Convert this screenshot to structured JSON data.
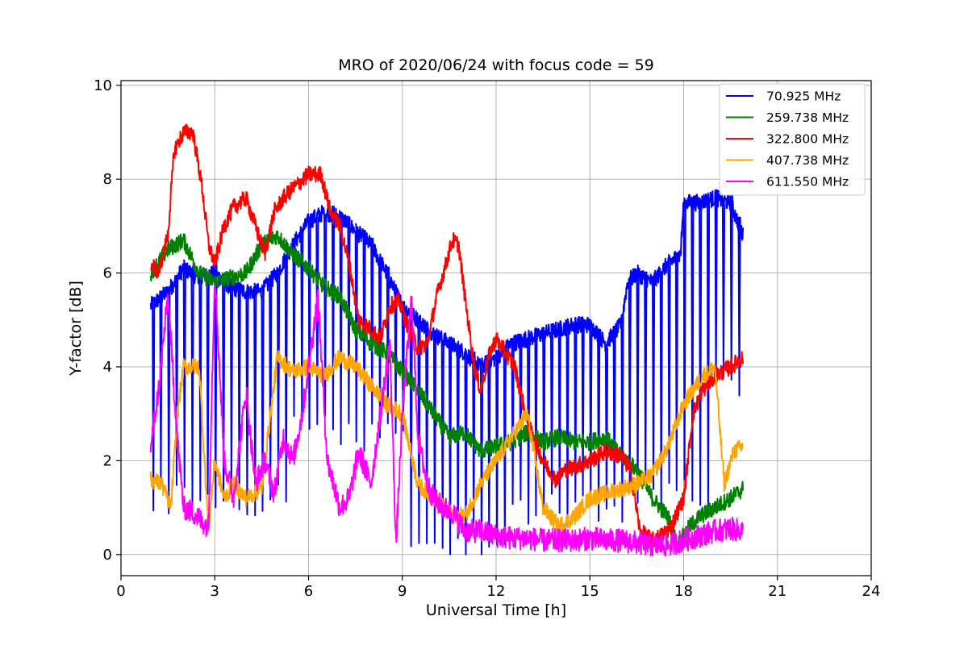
{
  "chart_data": {
    "type": "line",
    "title": "MRO of 2020/06/24 with focus code = 59",
    "xlabel": "Universal Time [h]",
    "ylabel": "Y-factor [dB]",
    "xlim": [
      0,
      24
    ],
    "ylim": [
      -0.45,
      10.1
    ],
    "xticks": [
      0,
      3,
      6,
      9,
      12,
      15,
      18,
      21,
      24
    ],
    "yticks": [
      0,
      2,
      4,
      6,
      8,
      10
    ],
    "grid": true,
    "legend_position": "top-right",
    "series": [
      {
        "name": " 70.925 MHz",
        "color": "#0000ff",
        "x": [
          0.95,
          1.5,
          2.0,
          2.5,
          3.0,
          3.5,
          4.0,
          4.5,
          5.0,
          5.5,
          6.0,
          6.5,
          7.0,
          7.5,
          8.0,
          8.5,
          9.0,
          9.5,
          10.0,
          10.5,
          11.0,
          11.5,
          12.0,
          12.5,
          13.0,
          13.5,
          14.0,
          14.5,
          15.0,
          15.5,
          16.0,
          16.2,
          16.5,
          17.0,
          17.5,
          17.9,
          18.0,
          18.5,
          19.0,
          19.5,
          19.9
        ],
        "y": [
          5.3,
          5.6,
          6.1,
          5.9,
          6.0,
          5.7,
          5.6,
          5.6,
          6.0,
          6.6,
          7.1,
          7.3,
          7.2,
          6.9,
          6.6,
          6.0,
          5.3,
          5.0,
          4.7,
          4.5,
          4.3,
          4.0,
          4.2,
          4.5,
          4.6,
          4.7,
          4.8,
          4.9,
          4.9,
          4.5,
          4.9,
          5.8,
          6.0,
          5.8,
          6.2,
          6.4,
          7.5,
          7.5,
          7.6,
          7.5,
          6.8
        ],
        "dips": {
          "start": 1.0,
          "end": 19.8,
          "period": 0.25,
          "low": [
            1.2,
            5.5,
            2.6,
            9.2,
            0.1,
            12.5,
            1.0,
            16.5,
            1.2,
            19.0,
            3.5
          ]
        }
      },
      {
        "name": "259.738 MHz",
        "color": "#008000",
        "x": [
          0.95,
          1.5,
          2.0,
          2.5,
          3.0,
          3.5,
          4.0,
          4.5,
          5.0,
          5.5,
          6.0,
          6.5,
          7.0,
          7.5,
          8.0,
          8.5,
          9.0,
          9.5,
          10.0,
          10.5,
          11.0,
          11.5,
          12.0,
          12.5,
          13.0,
          13.5,
          14.0,
          14.5,
          15.0,
          15.5,
          16.0,
          16.5,
          17.0,
          17.5,
          17.8,
          18.2,
          18.5,
          19.0,
          19.5,
          19.9
        ],
        "y": [
          6.0,
          6.5,
          6.7,
          6.0,
          5.8,
          5.9,
          6.0,
          6.6,
          6.8,
          6.4,
          6.1,
          5.7,
          5.5,
          4.8,
          4.5,
          4.3,
          3.9,
          3.5,
          3.0,
          2.5,
          2.6,
          2.2,
          2.3,
          2.4,
          2.6,
          2.4,
          2.5,
          2.4,
          2.4,
          2.5,
          2.1,
          1.8,
          1.2,
          0.8,
          0.2,
          0.6,
          0.8,
          1.0,
          1.2,
          1.4
        ]
      },
      {
        "name": "322.800 MHz",
        "color": "#ff0000",
        "x": [
          0.95,
          1.2,
          1.5,
          1.7,
          2.0,
          2.3,
          2.6,
          2.8,
          3.0,
          3.3,
          3.6,
          4.0,
          4.3,
          4.6,
          4.9,
          5.2,
          5.5,
          6.0,
          6.4,
          6.7,
          7.0,
          7.3,
          7.6,
          8.0,
          8.3,
          8.6,
          8.9,
          9.2,
          9.5,
          9.8,
          10.1,
          10.4,
          10.6,
          10.8,
          11.0,
          11.3,
          11.5,
          11.8,
          12.0,
          12.3,
          12.6,
          13.0,
          13.5,
          13.9,
          14.2,
          14.6,
          15.0,
          15.5,
          16.0,
          16.3,
          16.6,
          17.0,
          17.3,
          17.6,
          18.0,
          18.3,
          18.6,
          19.0,
          19.5,
          19.9
        ],
        "y": [
          6.2,
          6.0,
          6.8,
          8.6,
          9.0,
          9.0,
          7.8,
          6.6,
          6.2,
          7.0,
          7.4,
          7.6,
          7.0,
          6.4,
          7.3,
          7.6,
          7.8,
          8.1,
          8.1,
          7.3,
          7.0,
          6.2,
          5.0,
          4.8,
          4.6,
          5.3,
          5.4,
          4.8,
          4.4,
          4.5,
          5.5,
          6.2,
          6.7,
          6.6,
          5.5,
          4.0,
          3.5,
          4.3,
          4.6,
          4.3,
          4.0,
          2.8,
          2.0,
          1.6,
          1.8,
          1.9,
          2.0,
          2.2,
          2.1,
          1.8,
          0.5,
          0.3,
          0.4,
          0.6,
          1.2,
          3.0,
          3.5,
          3.8,
          4.0,
          4.2
        ]
      },
      {
        "name": "407.738 MHz",
        "color": "#ffa500",
        "x": [
          0.95,
          1.3,
          1.6,
          1.8,
          2.0,
          2.5,
          2.8,
          3.0,
          3.3,
          3.6,
          4.0,
          4.5,
          5.0,
          5.5,
          6.0,
          6.5,
          7.0,
          7.5,
          8.0,
          8.5,
          9.0,
          9.5,
          10.0,
          10.5,
          11.0,
          11.5,
          12.0,
          12.5,
          13.0,
          13.5,
          14.0,
          14.5,
          15.0,
          15.5,
          16.0,
          16.5,
          17.0,
          17.5,
          18.0,
          18.3,
          18.6,
          19.0,
          19.3,
          19.6,
          19.9
        ],
        "y": [
          1.6,
          1.5,
          1.0,
          3.0,
          4.0,
          4.0,
          0.5,
          2.0,
          1.2,
          1.5,
          1.2,
          1.4,
          4.2,
          3.9,
          4.0,
          3.8,
          4.2,
          4.0,
          3.6,
          3.2,
          3.0,
          1.5,
          1.2,
          0.9,
          0.8,
          1.5,
          2.0,
          2.5,
          3.0,
          1.0,
          0.6,
          0.8,
          1.2,
          1.3,
          1.4,
          1.5,
          1.7,
          2.3,
          3.2,
          3.5,
          3.8,
          4.0,
          1.5,
          2.2,
          2.3
        ]
      },
      {
        "name": "611.550 MHz",
        "color": "#ff00ff",
        "x": [
          0.95,
          1.2,
          1.5,
          1.8,
          2.0,
          2.3,
          2.6,
          2.8,
          3.0,
          3.3,
          3.6,
          4.0,
          4.3,
          4.6,
          4.9,
          5.2,
          5.5,
          5.8,
          6.0,
          6.3,
          6.6,
          7.0,
          7.3,
          7.6,
          8.0,
          8.3,
          8.6,
          8.8,
          9.0,
          9.3,
          9.5,
          9.8,
          10.0,
          10.3,
          10.6,
          11.0,
          11.5,
          12.0,
          12.5,
          13.0,
          13.5,
          14.0,
          14.5,
          15.0,
          15.5,
          16.0,
          16.5,
          17.0,
          17.5,
          18.0,
          18.5,
          19.0,
          19.5,
          19.9
        ],
        "y": [
          2.3,
          3.5,
          5.5,
          2.5,
          1.0,
          0.9,
          0.7,
          0.6,
          6.0,
          2.0,
          1.2,
          3.5,
          1.5,
          2.0,
          1.3,
          2.5,
          2.0,
          3.0,
          4.0,
          5.5,
          2.0,
          1.0,
          1.2,
          2.2,
          1.5,
          3.0,
          4.5,
          0.2,
          3.0,
          5.5,
          2.5,
          1.5,
          1.2,
          1.0,
          0.9,
          0.5,
          0.5,
          0.4,
          0.35,
          0.35,
          0.3,
          0.3,
          0.3,
          0.35,
          0.3,
          0.3,
          0.25,
          0.2,
          0.2,
          0.3,
          0.4,
          0.5,
          0.55,
          0.5
        ]
      }
    ]
  }
}
